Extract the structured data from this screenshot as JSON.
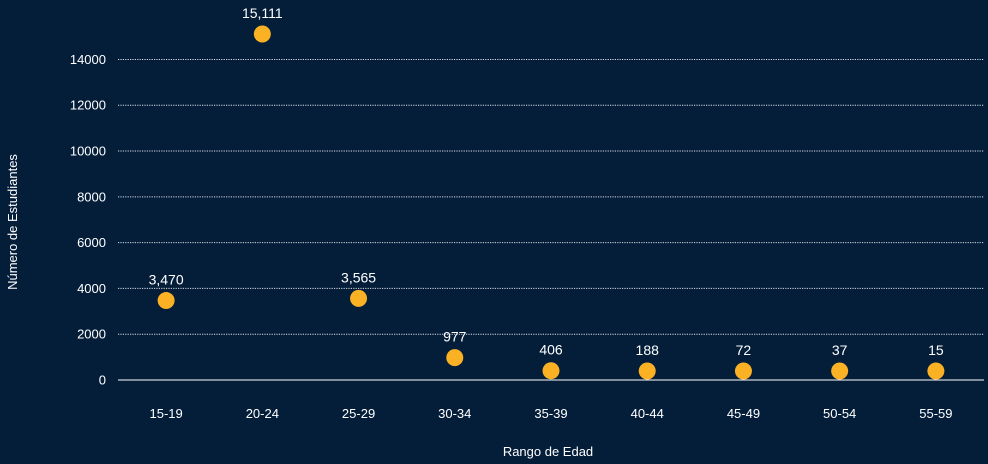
{
  "chart_data": {
    "type": "scatter",
    "title": "",
    "xlabel": "Rango de Edad",
    "ylabel": "Número de Estudiantes",
    "ylim": [
      0,
      15111
    ],
    "yticks": [
      0,
      2000,
      4000,
      6000,
      8000,
      10000,
      12000,
      14000
    ],
    "grid": true,
    "categories": [
      "15-19",
      "20-24",
      "25-29",
      "30-34",
      "35-39",
      "40-44",
      "45-49",
      "50-54",
      "55-59"
    ],
    "values": [
      3470,
      15111,
      3565,
      977,
      406,
      188,
      72,
      37,
      15
    ],
    "data_labels": [
      "3,470",
      "15,111",
      "3,565",
      "977",
      "406",
      "188",
      "72",
      "37",
      "15"
    ],
    "colors": {
      "background": "#041e3a",
      "marker": "#fbb124",
      "grid": "#ffffff",
      "text": "#ffffff"
    }
  }
}
